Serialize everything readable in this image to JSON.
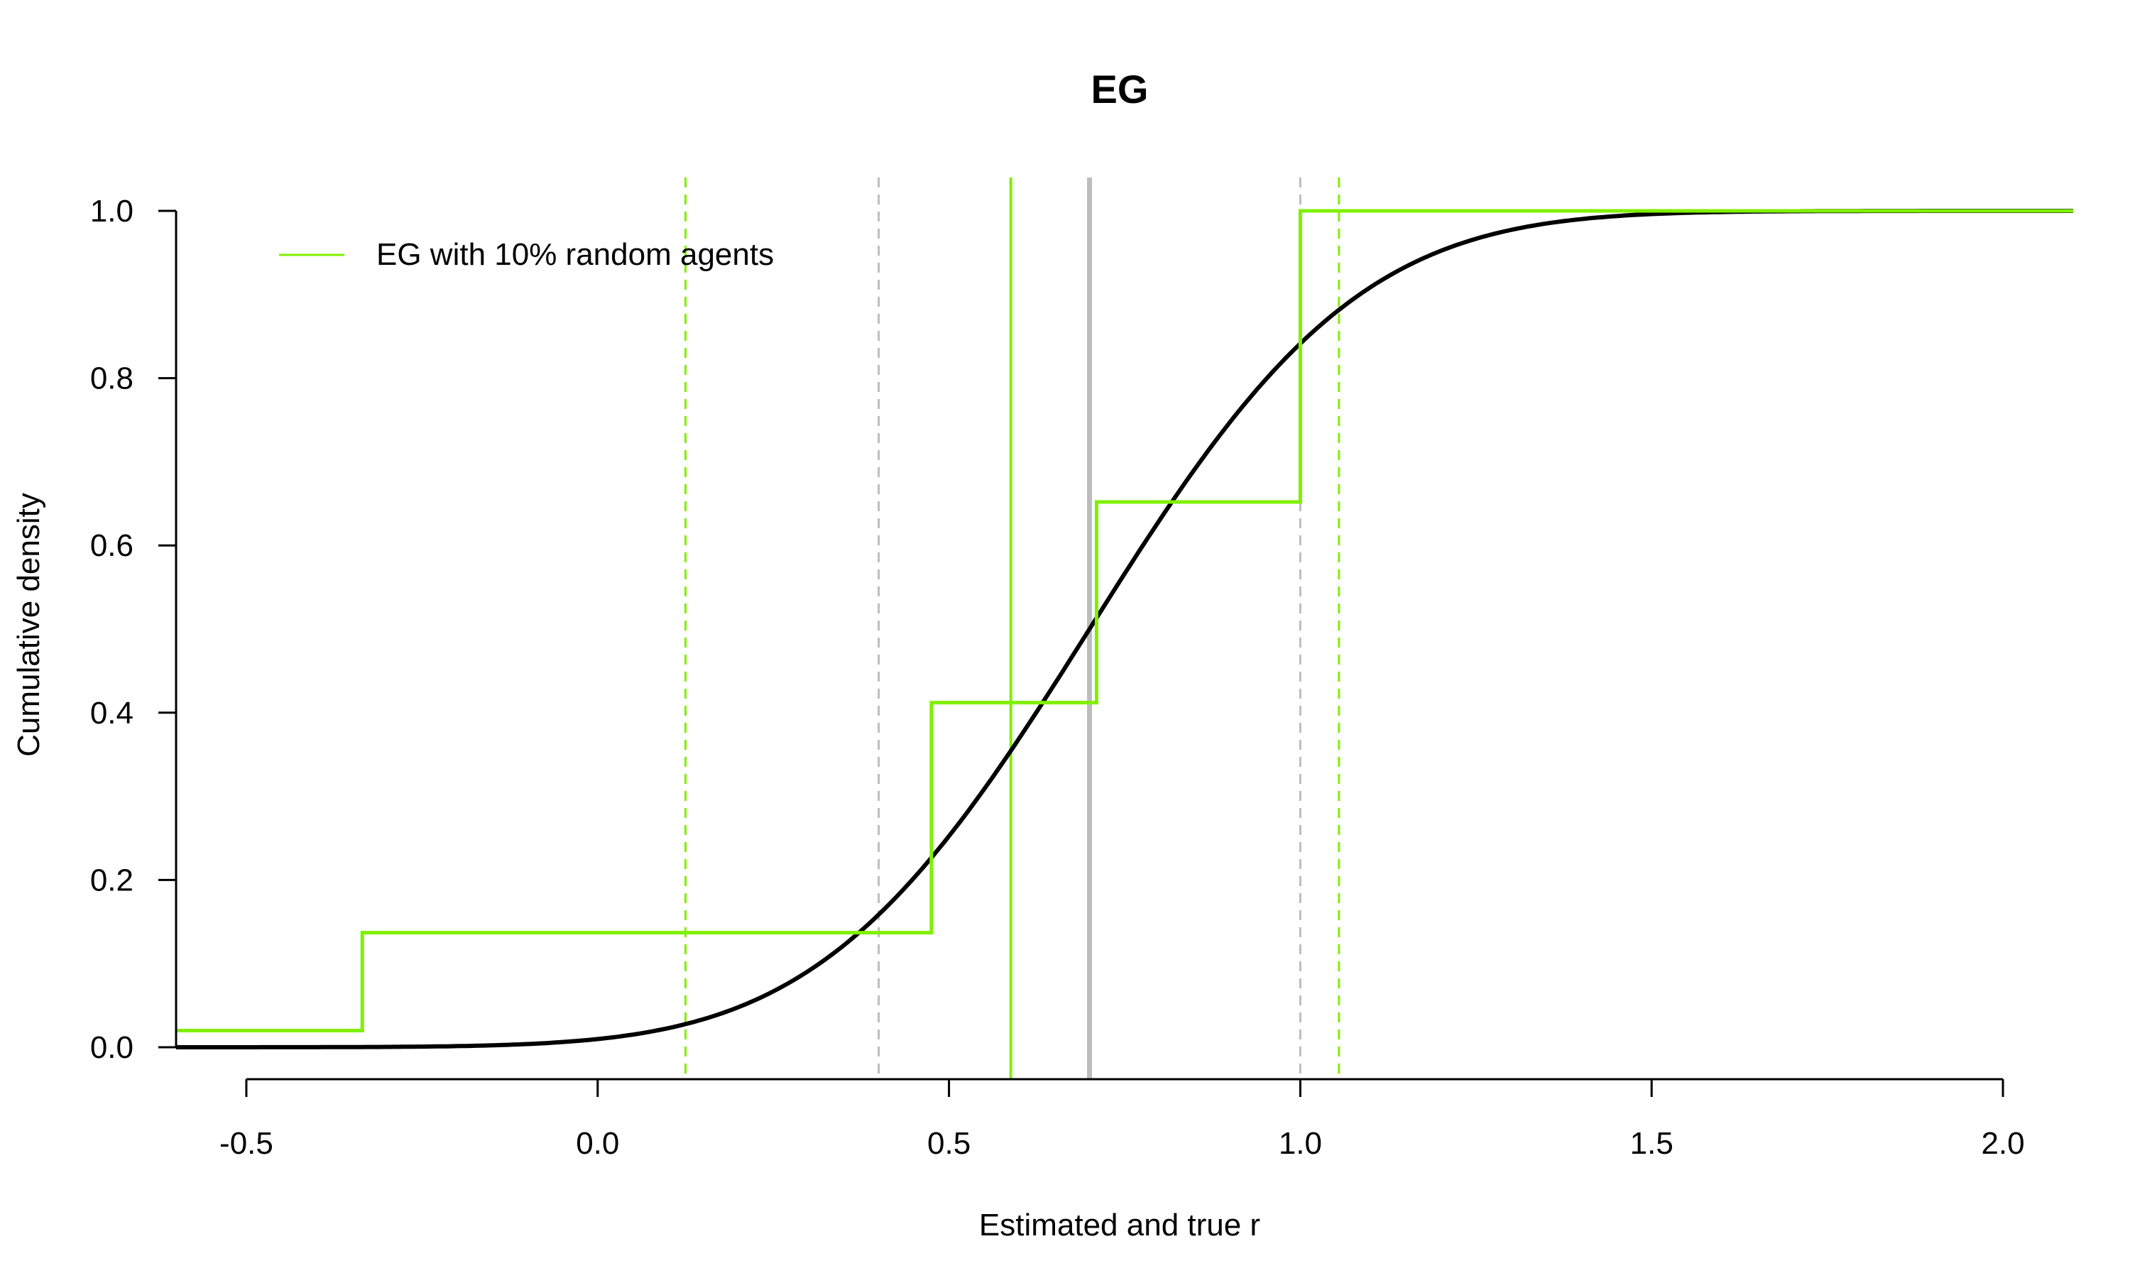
{
  "chart_data": {
    "type": "line",
    "title": "EG",
    "xlabel": "Estimated and true r",
    "ylabel": "Cumulative density",
    "xlim": [
      -0.6,
      2.1
    ],
    "ylim": [
      0,
      1
    ],
    "x_ticks": [
      "-0.5",
      "0.0",
      "0.5",
      "1.0",
      "1.5",
      "2.0"
    ],
    "y_ticks": [
      "0.0",
      "0.2",
      "0.4",
      "0.6",
      "0.8",
      "1.0"
    ],
    "grid": false,
    "legend_position": "top-left",
    "legend": [
      {
        "label": "EG with 10% random agents",
        "color": "#80f000"
      }
    ],
    "series": [
      {
        "name": "EG with 10% random agents",
        "kind": "step",
        "color": "#80f000",
        "x": [
          -0.6,
          -0.335,
          0.475,
          0.71,
          1.0,
          2.1
        ],
        "y": [
          0.02,
          0.137,
          0.412,
          0.652,
          1.0,
          1.0
        ]
      }
    ],
    "cdf_curve": {
      "kind": "normal-cdf",
      "color": "#000000",
      "mean": 0.7,
      "sd": 0.3
    },
    "reference_lines": [
      {
        "x": 0.125,
        "style": "dashed",
        "color": "#80f000"
      },
      {
        "x": 1.055,
        "style": "dashed",
        "color": "#80f000"
      },
      {
        "x": 0.588,
        "style": "solid",
        "color": "#80f000"
      },
      {
        "x": 0.4,
        "style": "dashed",
        "color": "#bdbdbd"
      },
      {
        "x": 1.0,
        "style": "dashed",
        "color": "#bdbdbd"
      },
      {
        "x": 0.7,
        "style": "solid-thick",
        "color": "#bdbdbd"
      }
    ]
  }
}
